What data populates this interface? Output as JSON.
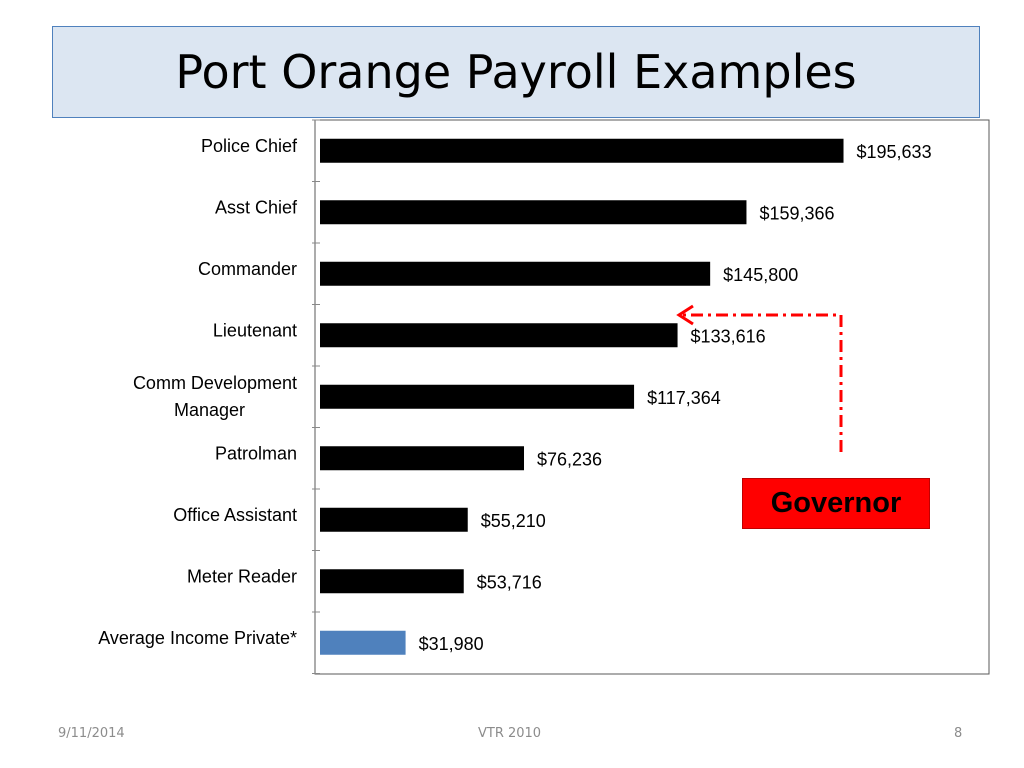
{
  "slide": {
    "title": "Port Orange Payroll Examples",
    "footer_date": "9/11/2014",
    "footer_center": "VTR 2010",
    "page_number": "8"
  },
  "annotation": {
    "label": "Governor",
    "box_color": "#ff0000",
    "arrow_color": "#ff0000"
  },
  "chart_data": {
    "type": "bar",
    "orientation": "horizontal",
    "categories": [
      "Police Chief",
      "Asst Chief",
      "Commander",
      "Lieutenant",
      "Comm Development Manager",
      "Patrolman",
      "Office Assistant",
      "Meter Reader",
      "Average Income Private*"
    ],
    "values": [
      195633,
      159366,
      145800,
      133616,
      117364,
      76236,
      55210,
      53716,
      31980
    ],
    "data_labels": [
      "$195,633",
      "$159,366",
      "$145,800",
      "$133,616",
      "$117,364",
      "$76,236",
      "$55,210",
      "$53,716",
      "$31,980"
    ],
    "bar_colors": [
      "#000000",
      "#000000",
      "#000000",
      "#000000",
      "#000000",
      "#000000",
      "#000000",
      "#000000",
      "#4f81bd"
    ],
    "xlim": [
      0,
      250000
    ],
    "grid": false,
    "legend": "none",
    "title": "",
    "xlabel": "",
    "ylabel": ""
  }
}
